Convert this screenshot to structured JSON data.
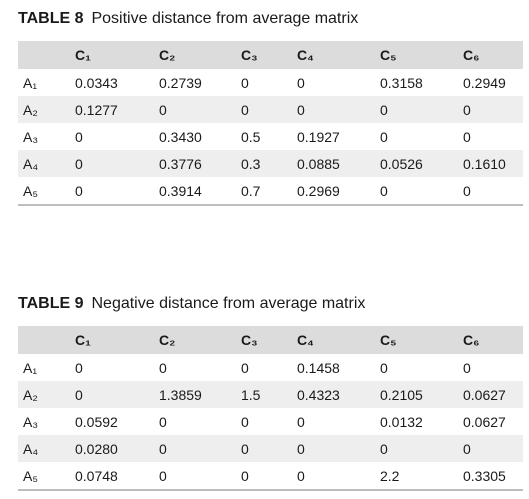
{
  "table8": {
    "label": "TABLE 8",
    "title": "Positive distance from average matrix",
    "columns": [
      "",
      "C₁",
      "C₂",
      "C₃",
      "C₄",
      "C₅",
      "C₆"
    ],
    "rows": [
      {
        "name": "A₁",
        "values": [
          "0.0343",
          "0.2739",
          "0",
          "0",
          "0.3158",
          "0.2949"
        ]
      },
      {
        "name": "A₂",
        "values": [
          "0.1277",
          "0",
          "0",
          "0",
          "0",
          "0"
        ]
      },
      {
        "name": "A₃",
        "values": [
          "0",
          "0.3430",
          "0.5",
          "0.1927",
          "0",
          "0"
        ]
      },
      {
        "name": "A₄",
        "values": [
          "0",
          "0.3776",
          "0.3",
          "0.0885",
          "0.0526",
          "0.1610"
        ]
      },
      {
        "name": "A₅",
        "values": [
          "0",
          "0.3914",
          "0.7",
          "0.2969",
          "0",
          "0"
        ]
      }
    ]
  },
  "table9": {
    "label": "TABLE 9",
    "title": "Negative distance from average matrix",
    "columns": [
      "",
      "C₁",
      "C₂",
      "C₃",
      "C₄",
      "C₅",
      "C₆"
    ],
    "rows": [
      {
        "name": "A₁",
        "values": [
          "0",
          "0",
          "0",
          "0.1458",
          "0",
          "0"
        ]
      },
      {
        "name": "A₂",
        "values": [
          "0",
          "1.3859",
          "1.5",
          "0.4323",
          "0.2105",
          "0.0627"
        ]
      },
      {
        "name": "A₃",
        "values": [
          "0.0592",
          "0",
          "0",
          "0",
          "0.0132",
          "0.0627"
        ]
      },
      {
        "name": "A₄",
        "values": [
          "0.0280",
          "0",
          "0",
          "0",
          "0",
          "0"
        ]
      },
      {
        "name": "A₅",
        "values": [
          "0.0748",
          "0",
          "0",
          "0",
          "2.2",
          "0.3305"
        ]
      }
    ]
  }
}
